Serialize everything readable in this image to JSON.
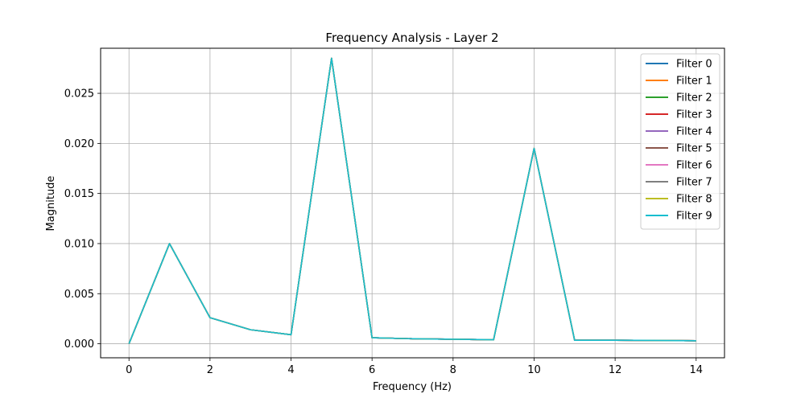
{
  "chart_data": {
    "type": "line",
    "title": "Frequency Analysis - Layer 2",
    "xlabel": "Frequency (Hz)",
    "ylabel": "Magnitude",
    "xlim": [
      -0.7,
      14.7
    ],
    "ylim": [
      -0.0014,
      0.0295
    ],
    "x_ticks": [
      0,
      2,
      4,
      6,
      8,
      10,
      12,
      14
    ],
    "x_tick_labels": [
      "0",
      "2",
      "4",
      "6",
      "8",
      "10",
      "12",
      "14"
    ],
    "y_ticks": [
      0,
      0.005,
      0.01,
      0.015,
      0.02,
      0.025
    ],
    "y_tick_labels": [
      "0.000",
      "0.005",
      "0.010",
      "0.015",
      "0.020",
      "0.025"
    ],
    "grid": true,
    "legend_position": "top-right",
    "x": [
      0,
      1,
      2,
      3,
      4,
      5,
      6,
      7,
      8,
      9,
      10,
      11,
      12,
      13,
      14
    ],
    "series": [
      {
        "name": "Filter 0",
        "color": "#1f77b4",
        "values": [
          0.0,
          0.01,
          0.0026,
          0.0014,
          0.0009,
          0.0285,
          0.0006,
          0.0005,
          0.00045,
          0.0004,
          0.0195,
          0.00035,
          0.00035,
          0.00033,
          0.0003
        ]
      },
      {
        "name": "Filter 1",
        "color": "#ff7f0e",
        "values": [
          0.0,
          0.01,
          0.0026,
          0.0014,
          0.0009,
          0.0285,
          0.0006,
          0.0005,
          0.00045,
          0.0004,
          0.0195,
          0.00035,
          0.00035,
          0.00033,
          0.0003
        ]
      },
      {
        "name": "Filter 2",
        "color": "#2ca02c",
        "values": [
          0.0,
          0.01,
          0.0026,
          0.0014,
          0.0009,
          0.0285,
          0.0006,
          0.0005,
          0.00045,
          0.0004,
          0.0195,
          0.00035,
          0.00035,
          0.00033,
          0.0003
        ]
      },
      {
        "name": "Filter 3",
        "color": "#d62728",
        "values": [
          0.0,
          0.01,
          0.0026,
          0.0014,
          0.0009,
          0.0285,
          0.0006,
          0.0005,
          0.00045,
          0.0004,
          0.0195,
          0.00035,
          0.00035,
          0.00033,
          0.0003
        ]
      },
      {
        "name": "Filter 4",
        "color": "#9467bd",
        "values": [
          0.0,
          0.01,
          0.0026,
          0.0014,
          0.0009,
          0.0285,
          0.0006,
          0.0005,
          0.00045,
          0.0004,
          0.0195,
          0.00035,
          0.00035,
          0.00033,
          0.0003
        ]
      },
      {
        "name": "Filter 5",
        "color": "#8c564b",
        "values": [
          0.0,
          0.01,
          0.0026,
          0.0014,
          0.0009,
          0.0285,
          0.0006,
          0.0005,
          0.00045,
          0.0004,
          0.0195,
          0.00035,
          0.00035,
          0.00033,
          0.0003
        ]
      },
      {
        "name": "Filter 6",
        "color": "#e377c2",
        "values": [
          0.0,
          0.01,
          0.0026,
          0.0014,
          0.0009,
          0.0285,
          0.0006,
          0.0005,
          0.00045,
          0.0004,
          0.0195,
          0.00035,
          0.00035,
          0.00033,
          0.0003
        ]
      },
      {
        "name": "Filter 7",
        "color": "#7f7f7f",
        "values": [
          0.0,
          0.01,
          0.0026,
          0.0014,
          0.0009,
          0.0285,
          0.0006,
          0.0005,
          0.00045,
          0.0004,
          0.0195,
          0.00035,
          0.00035,
          0.00033,
          0.0003
        ]
      },
      {
        "name": "Filter 8",
        "color": "#bcbd22",
        "values": [
          0.0,
          0.01,
          0.0026,
          0.0014,
          0.0009,
          0.0285,
          0.0006,
          0.0005,
          0.00045,
          0.0004,
          0.0195,
          0.00035,
          0.00035,
          0.00033,
          0.0003
        ]
      },
      {
        "name": "Filter 9",
        "color": "#17becf",
        "values": [
          0.0,
          0.01,
          0.0026,
          0.0014,
          0.0009,
          0.0285,
          0.0006,
          0.0005,
          0.00045,
          0.0004,
          0.0195,
          0.00035,
          0.00035,
          0.00033,
          0.0003
        ]
      }
    ]
  }
}
